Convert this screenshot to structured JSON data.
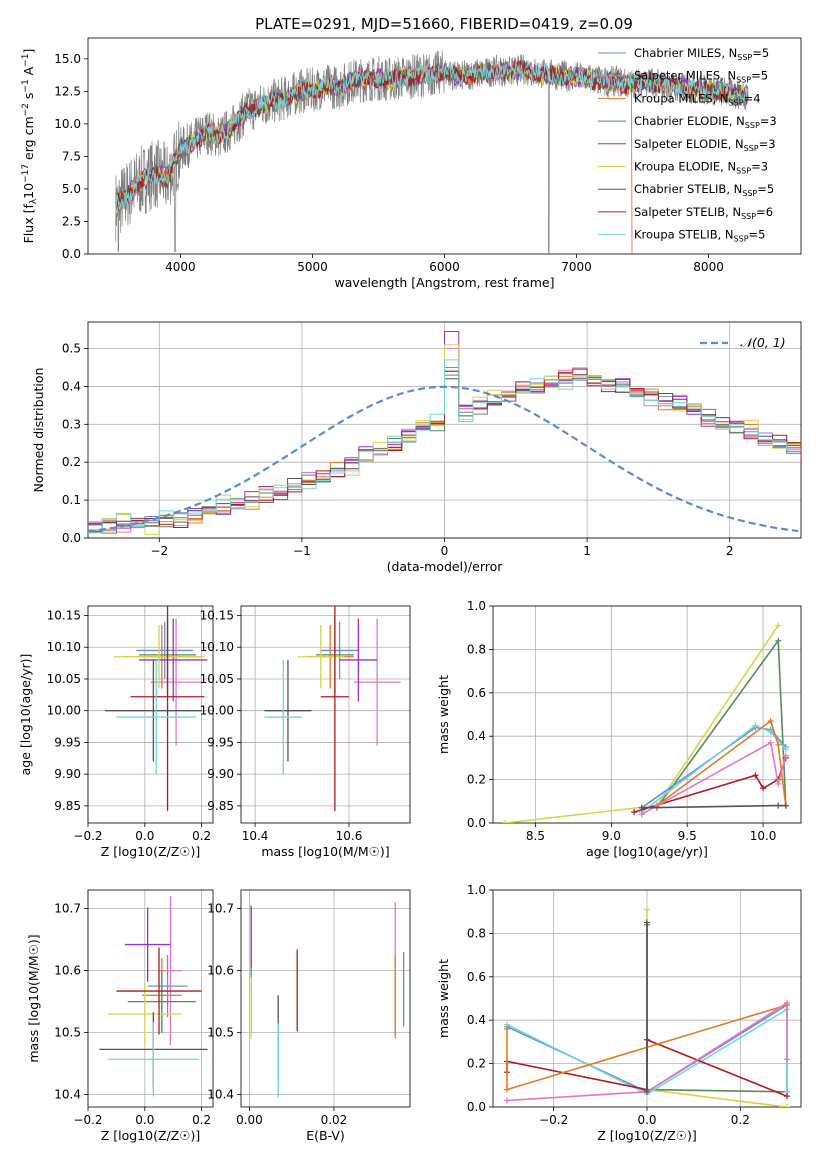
{
  "figure_title": "PLATE=0291, MJD=51660, FIBERID=0419, z=0.09",
  "colors": {
    "Chabrier MILES": "#6b8fd6",
    "Salpeter MILES": "#e377c2",
    "Kroupa MILES": "#e07b26",
    "Chabrier ELODIE": "#5a8a5a",
    "Salpeter ELODIE": "#9b30c9",
    "Kroupa ELODIE": "#d4d64a",
    "Chabrier STELIB": "#555555",
    "Salpeter STELIB": "#b01c1c",
    "Kroupa STELIB": "#72d6d6"
  },
  "chart_data": [
    {
      "id": "spectrum",
      "type": "line",
      "title": "PLATE=0291, MJD=51660, FIBERID=0419, z=0.09",
      "xlabel": "wavelength [Angstrom, rest frame]",
      "ylabel_parts": [
        "Flux [f",
        "λ",
        "10",
        "−17",
        " erg cm",
        "−2",
        " s",
        "−1",
        " A",
        "−1",
        "]"
      ],
      "xlim": [
        3300,
        8700
      ],
      "ylim": [
        0,
        16.6
      ],
      "xticks": [
        4000,
        5000,
        6000,
        7000,
        8000
      ],
      "yticks": [
        0.0,
        2.5,
        5.0,
        7.5,
        10.0,
        12.5,
        15.0
      ],
      "data_color": "#808080",
      "continuum": {
        "x": [
          3500,
          3600,
          3700,
          3800,
          3900,
          4000,
          4100,
          4200,
          4300,
          4400,
          4500,
          4600,
          4700,
          4800,
          4900,
          5000,
          5100,
          5200,
          5300,
          5400,
          5500,
          5600,
          5700,
          5800,
          5900,
          6000,
          6100,
          6200,
          6300,
          6400,
          6500,
          6600,
          6700,
          6800,
          6900,
          7000,
          7100,
          7200,
          7300,
          7400,
          7500,
          7600,
          7700,
          7800,
          7900,
          8000,
          8100,
          8200,
          8300
        ],
        "y": [
          3.6,
          4.6,
          5.6,
          6.2,
          5.8,
          8.0,
          8.6,
          9.4,
          9.0,
          9.8,
          11.0,
          11.4,
          11.7,
          12.0,
          12.5,
          12.6,
          12.9,
          12.8,
          13.3,
          13.4,
          13.5,
          13.4,
          13.6,
          13.7,
          13.8,
          14.0,
          13.6,
          13.8,
          13.9,
          14.1,
          14.0,
          14.2,
          13.9,
          13.8,
          13.7,
          13.6,
          13.5,
          13.2,
          13.3,
          13.0,
          13.2,
          13.1,
          12.9,
          12.8,
          12.7,
          12.6,
          12.5,
          12.3,
          12.2
        ]
      },
      "series": [
        {
          "name": "Chabrier MILES",
          "n_ssp": "5"
        },
        {
          "name": "Salpeter MILES",
          "n_ssp": "5"
        },
        {
          "name": "Kroupa MILES",
          "n_ssp": "4"
        },
        {
          "name": "Chabrier ELODIE",
          "n_ssp": "3"
        },
        {
          "name": "Salpeter ELODIE",
          "n_ssp": "3"
        },
        {
          "name": "Kroupa ELODIE",
          "n_ssp": "3"
        },
        {
          "name": "Chabrier STELIB",
          "n_ssp": "5"
        },
        {
          "name": "Salpeter STELIB",
          "n_ssp": "6"
        },
        {
          "name": "Kroupa STELIB",
          "n_ssp": "5"
        }
      ],
      "legend_loc": "right"
    },
    {
      "id": "residuals",
      "type": "line",
      "xlabel": "(data-model)/error",
      "ylabel": "Normed distribution",
      "xlim": [
        -2.5,
        2.5
      ],
      "ylim": [
        0,
        0.57
      ],
      "xticks": [
        -2,
        -1,
        0,
        1,
        2
      ],
      "yticks": [
        0.0,
        0.1,
        0.2,
        0.3,
        0.4,
        0.5
      ],
      "grid": true,
      "legend": "𝒩(0, 1)",
      "legend_loc": "top-right",
      "normal_curve": {
        "mu": 0,
        "sigma": 1,
        "color": "#5b8bd6"
      },
      "bin_width": 0.1,
      "bin_start": -2.5,
      "base_hist": [
        0.03,
        0.03,
        0.04,
        0.04,
        0.04,
        0.05,
        0.05,
        0.06,
        0.07,
        0.08,
        0.09,
        0.1,
        0.11,
        0.12,
        0.14,
        0.15,
        0.16,
        0.18,
        0.2,
        0.22,
        0.23,
        0.25,
        0.27,
        0.29,
        0.3,
        0.31,
        0.33,
        0.35,
        0.36,
        0.38,
        0.39,
        0.4,
        0.41,
        0.42,
        0.43,
        0.42,
        0.41,
        0.4,
        0.38,
        0.37,
        0.36,
        0.35,
        0.34,
        0.32,
        0.3,
        0.29,
        0.28,
        0.26,
        0.25,
        0.24,
        0.22,
        0.21,
        0.19,
        0.17,
        0.15,
        0.14,
        0.12,
        0.11,
        0.1,
        0.09,
        0.08,
        0.07,
        0.06,
        0.06,
        0.05,
        0.05,
        0.04,
        0.04,
        0.04,
        0.03
      ],
      "series_offsets": [
        0.0,
        0.012,
        -0.008,
        0.006,
        -0.015,
        0.02,
        -0.004,
        0.009,
        -0.011
      ],
      "series_peak": [
        0.45,
        0.5,
        0.44,
        0.43,
        0.545,
        0.51,
        0.42,
        0.44,
        0.47
      ]
    },
    {
      "id": "age_vs_Z",
      "type": "scatter",
      "xlabel": "Z [log10(Z/Z☉)]",
      "ylabel": "age  [log10(age/yr)]",
      "xlim": [
        -0.2,
        0.24
      ],
      "ylim": [
        9.823,
        10.165
      ],
      "xticks": [
        -0.2,
        0.0,
        0.2
      ],
      "xticklabels": [
        "−0.2",
        "0.0",
        "0.2"
      ],
      "yticks": [
        9.85,
        9.9,
        9.95,
        10.0,
        10.05,
        10.1,
        10.15
      ],
      "grid": true,
      "points": [
        {
          "s": "Chabrier MILES",
          "x": 0.07,
          "xe": 0.1,
          "y": 10.095,
          "ye": 0.045
        },
        {
          "s": "Salpeter MILES",
          "x": 0.11,
          "xe": 0.09,
          "y": 10.045,
          "ye": 0.1
        },
        {
          "s": "Kroupa MILES",
          "x": 0.06,
          "xe": 0.14,
          "y": 10.085,
          "ye": 0.05
        },
        {
          "s": "Chabrier ELODIE",
          "x": 0.08,
          "xe": 0.1,
          "y": 10.088,
          "ye": 0.06
        },
        {
          "s": "Salpeter ELODIE",
          "x": 0.1,
          "xe": 0.12,
          "y": 10.08,
          "ye": 0.065
        },
        {
          "s": "Kroupa ELODIE",
          "x": 0.05,
          "xe": 0.16,
          "y": 10.085,
          "ye": 0.05
        },
        {
          "s": "Chabrier STELIB",
          "x": 0.03,
          "xe": 0.17,
          "y": 10.0,
          "ye": 0.08
        },
        {
          "s": "Salpeter STELIB",
          "x": 0.08,
          "xe": 0.13,
          "y": 10.022,
          "ye": 0.18
        },
        {
          "s": "Kroupa STELIB",
          "x": 0.04,
          "xe": 0.14,
          "y": 9.99,
          "ye": 0.09
        }
      ]
    },
    {
      "id": "age_vs_mass",
      "type": "scatter",
      "xlabel": "mass [log10(M/M☉)]",
      "ylabel": "",
      "xlim": [
        10.37,
        10.73
      ],
      "ylim": [
        9.823,
        10.165
      ],
      "xticks": [
        10.4,
        10.6
      ],
      "yticks": [
        9.85,
        9.9,
        9.95,
        10.0,
        10.05,
        10.1,
        10.15
      ],
      "grid": true,
      "points": [
        {
          "s": "Chabrier MILES",
          "x": 10.58,
          "xe": 0.04,
          "y": 10.095,
          "ye": 0.045
        },
        {
          "s": "Salpeter MILES",
          "x": 10.66,
          "xe": 0.05,
          "y": 10.045,
          "ye": 0.1
        },
        {
          "s": "Kroupa MILES",
          "x": 10.56,
          "xe": 0.05,
          "y": 10.085,
          "ye": 0.05
        },
        {
          "s": "Chabrier ELODIE",
          "x": 10.57,
          "xe": 0.04,
          "y": 10.088,
          "ye": 0.06
        },
        {
          "s": "Salpeter ELODIE",
          "x": 10.62,
          "xe": 0.04,
          "y": 10.08,
          "ye": 0.065
        },
        {
          "s": "Kroupa ELODIE",
          "x": 10.54,
          "xe": 0.05,
          "y": 10.085,
          "ye": 0.05
        },
        {
          "s": "Chabrier STELIB",
          "x": 10.47,
          "xe": 0.05,
          "y": 10.0,
          "ye": 0.08
        },
        {
          "s": "Salpeter STELIB",
          "x": 10.57,
          "xe": 0.03,
          "y": 10.022,
          "ye": 0.18
        },
        {
          "s": "Kroupa STELIB",
          "x": 10.46,
          "xe": 0.04,
          "y": 9.99,
          "ye": 0.09
        }
      ]
    },
    {
      "id": "mw_vs_age",
      "type": "line",
      "xlabel": "age  [log10(age/yr)]",
      "ylabel": "mass weight",
      "xlim": [
        8.22,
        10.25
      ],
      "ylim": [
        0,
        1.0
      ],
      "xticks": [
        8.5,
        9.0,
        9.5,
        10.0
      ],
      "yticks": [
        0.0,
        0.2,
        0.4,
        0.6,
        0.8,
        1.0
      ],
      "grid": true,
      "series": [
        {
          "s": "Kroupa ELODIE",
          "x": [
            8.3,
            9.3,
            10.1
          ],
          "y": [
            0.0,
            0.08,
            0.91
          ]
        },
        {
          "s": "Chabrier ELODIE",
          "x": [
            9.3,
            10.1,
            10.15
          ],
          "y": [
            0.07,
            0.84,
            0.08
          ]
        },
        {
          "s": "Chabrier MILES",
          "x": [
            9.2,
            9.95,
            10.05,
            10.15
          ],
          "y": [
            0.07,
            0.44,
            0.43,
            0.35
          ]
        },
        {
          "s": "Kroupa STELIB",
          "x": [
            9.2,
            9.95,
            10.05,
            10.15
          ],
          "y": [
            0.05,
            0.45,
            0.42,
            0.34
          ]
        },
        {
          "s": "Salpeter STELIB",
          "x": [
            9.15,
            9.95,
            10.0,
            10.1,
            10.15
          ],
          "y": [
            0.05,
            0.22,
            0.16,
            0.2,
            0.3
          ]
        },
        {
          "s": "Kroupa MILES",
          "x": [
            9.3,
            10.05,
            10.1,
            10.15
          ],
          "y": [
            0.08,
            0.47,
            0.36,
            0.08
          ]
        },
        {
          "s": "Salpeter MILES",
          "x": [
            9.2,
            10.05,
            10.1,
            10.15
          ],
          "y": [
            0.04,
            0.37,
            0.18,
            0.31
          ]
        },
        {
          "s": "Chabrier STELIB",
          "x": [
            9.2,
            10.1,
            10.15
          ],
          "y": [
            0.07,
            0.08,
            0.08
          ]
        }
      ]
    },
    {
      "id": "mass_vs_Z",
      "type": "scatter",
      "xlabel": "Z [log10(Z/Z☉)]",
      "ylabel": "mass [log10(M/M☉)]",
      "xlim": [
        -0.2,
        0.24
      ],
      "ylim": [
        10.38,
        10.73
      ],
      "xticks": [
        -0.2,
        0.0,
        0.2
      ],
      "xticklabels": [
        "−0.2",
        "0.0",
        "0.2"
      ],
      "yticks": [
        10.4,
        10.5,
        10.6,
        10.7
      ],
      "grid": true,
      "points": [
        {
          "s": "Chabrier MILES",
          "x": 0.08,
          "xe": 0.07,
          "y": 10.575,
          "ye": 0.05
        },
        {
          "s": "Salpeter MILES",
          "x": 0.09,
          "xe": 0.04,
          "y": 10.6,
          "ye": 0.12
        },
        {
          "s": "Kroupa MILES",
          "x": 0.06,
          "xe": 0.07,
          "y": 10.56,
          "ye": 0.06
        },
        {
          "s": "Chabrier ELODIE",
          "x": 0.06,
          "xe": 0.12,
          "y": 10.55,
          "ye": 0.05
        },
        {
          "s": "Salpeter ELODIE",
          "x": 0.01,
          "xe": 0.08,
          "y": 10.642,
          "ye": 0.06
        },
        {
          "s": "Kroupa ELODIE",
          "x": 0.0,
          "xe": 0.13,
          "y": 10.53,
          "ye": 0.05
        },
        {
          "s": "Chabrier STELIB",
          "x": 0.03,
          "xe": 0.19,
          "y": 10.473,
          "ye": 0.06
        },
        {
          "s": "Salpeter STELIB",
          "x": 0.05,
          "xe": 0.15,
          "y": 10.567,
          "ye": 0.07
        },
        {
          "s": "Kroupa STELIB",
          "x": 0.03,
          "xe": 0.16,
          "y": 10.457,
          "ye": 0.06
        }
      ]
    },
    {
      "id": "mass_vs_ebv",
      "type": "scatter",
      "xlabel": "E(B-V)",
      "ylabel": "",
      "xlim": [
        -0.002,
        0.038
      ],
      "ylim": [
        10.38,
        10.73
      ],
      "xticks": [
        0.0,
        0.02
      ],
      "xticklabels": [
        "0.00",
        "0.02"
      ],
      "yticks": [
        10.4,
        10.5,
        10.6,
        10.7
      ],
      "grid": true,
      "points": [
        {
          "s": "Chabrier MILES",
          "x": 0.0365,
          "y": 10.57,
          "ye": 0.06
        },
        {
          "s": "Salpeter MILES",
          "x": 0.0345,
          "y": 10.6,
          "ye": 0.11
        },
        {
          "s": "Kroupa MILES",
          "x": 0.0345,
          "y": 10.56,
          "ye": 0.065
        },
        {
          "s": "Chabrier ELODIE",
          "x": 0.0004,
          "y": 10.6,
          "ye": 0.1
        },
        {
          "s": "Salpeter ELODIE",
          "x": 0.0004,
          "y": 10.655,
          "ye": 0.05
        },
        {
          "s": "Kroupa ELODIE",
          "x": 0.0004,
          "y": 10.54,
          "ye": 0.05
        },
        {
          "s": "Chabrier STELIB",
          "x": 0.0068,
          "y": 10.49,
          "ye": 0.07
        },
        {
          "s": "Salpeter STELIB",
          "x": 0.0113,
          "y": 10.568,
          "ye": 0.066
        },
        {
          "s": "Kroupa STELIB",
          "x": 0.0068,
          "y": 10.455,
          "ye": 0.06
        }
      ]
    },
    {
      "id": "mw_vs_Z",
      "type": "line",
      "xlabel": "Z [log10(Z/Z☉)]",
      "ylabel": "mass weight",
      "xlim": [
        -0.33,
        0.33
      ],
      "ylim": [
        0,
        1.0
      ],
      "xticks": [
        -0.2,
        0.0,
        0.2
      ],
      "xticklabels": [
        "−0.2",
        "0.0",
        "0.2"
      ],
      "yticks": [
        0.0,
        0.2,
        0.4,
        0.6,
        0.8,
        1.0
      ],
      "grid": true,
      "series": [
        {
          "s": "Kroupa ELODIE",
          "x": [
            0.0,
            0.0,
            0.3
          ],
          "y": [
            0.91,
            0.08,
            0.0
          ]
        },
        {
          "s": "Chabrier ELODIE",
          "x": [
            0.0,
            0.0,
            0.3
          ],
          "y": [
            0.84,
            0.08,
            0.07
          ]
        },
        {
          "s": "Chabrier MILES",
          "x": [
            -0.3,
            0.0,
            0.3,
            0.3
          ],
          "y": [
            0.37,
            0.07,
            0.47,
            0.07
          ]
        },
        {
          "s": "Kroupa STELIB",
          "x": [
            -0.3,
            0.0,
            0.3,
            0.3
          ],
          "y": [
            0.38,
            0.06,
            0.45,
            0.07
          ]
        },
        {
          "s": "Salpeter STELIB",
          "x": [
            -0.3,
            -0.3,
            0.0,
            0.0,
            0.3
          ],
          "y": [
            0.16,
            0.21,
            0.08,
            0.31,
            0.05
          ]
        },
        {
          "s": "Kroupa MILES",
          "x": [
            -0.3,
            -0.3,
            0.3
          ],
          "y": [
            0.36,
            0.08,
            0.47
          ]
        },
        {
          "s": "Salpeter MILES",
          "x": [
            -0.3,
            0.0,
            0.3,
            0.3
          ],
          "y": [
            0.03,
            0.07,
            0.48,
            0.22
          ]
        },
        {
          "s": "Chabrier STELIB",
          "x": [
            0.0,
            0.0
          ],
          "y": [
            0.85,
            0.07
          ]
        }
      ]
    }
  ]
}
